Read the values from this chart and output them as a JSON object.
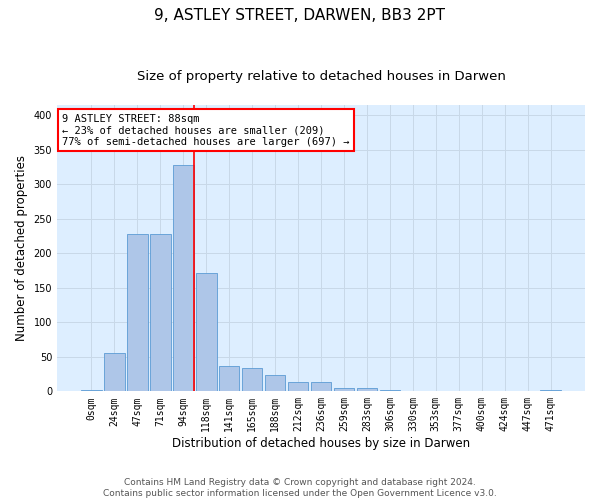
{
  "title_line1": "9, ASTLEY STREET, DARWEN, BB3 2PT",
  "title_line2": "Size of property relative to detached houses in Darwen",
  "xlabel": "Distribution of detached houses by size in Darwen",
  "ylabel": "Number of detached properties",
  "bar_labels": [
    "0sqm",
    "24sqm",
    "47sqm",
    "71sqm",
    "94sqm",
    "118sqm",
    "141sqm",
    "165sqm",
    "188sqm",
    "212sqm",
    "236sqm",
    "259sqm",
    "283sqm",
    "306sqm",
    "330sqm",
    "353sqm",
    "377sqm",
    "400sqm",
    "424sqm",
    "447sqm",
    "471sqm"
  ],
  "bar_values": [
    2,
    55,
    228,
    228,
    328,
    172,
    37,
    34,
    24,
    13,
    13,
    5,
    5,
    2,
    1,
    1,
    1,
    0,
    0,
    0,
    2
  ],
  "bar_color": "#aec6e8",
  "bar_edgecolor": "#5b9bd5",
  "vline_bin_index": 4,
  "annotation_text": "9 ASTLEY STREET: 88sqm\n← 23% of detached houses are smaller (209)\n77% of semi-detached houses are larger (697) →",
  "annotation_box_color": "white",
  "annotation_box_edgecolor": "red",
  "vline_color": "red",
  "ylim": [
    0,
    415
  ],
  "yticks": [
    0,
    50,
    100,
    150,
    200,
    250,
    300,
    350,
    400
  ],
  "grid_color": "#c8d8e8",
  "background_color": "#ddeeff",
  "footer_text": "Contains HM Land Registry data © Crown copyright and database right 2024.\nContains public sector information licensed under the Open Government Licence v3.0.",
  "title_fontsize": 11,
  "subtitle_fontsize": 9.5,
  "axis_label_fontsize": 8.5,
  "tick_fontsize": 7,
  "annotation_fontsize": 7.5,
  "footer_fontsize": 6.5
}
